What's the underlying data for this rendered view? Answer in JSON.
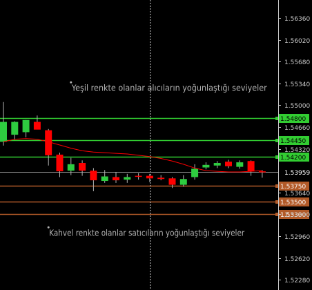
{
  "chart_data": {
    "type": "candlestick",
    "colors": {
      "background": "#000000",
      "axis": "#c8c8c8",
      "bull": "#2ecc40",
      "bear": "#ff0000",
      "wick": "#b4b4b4",
      "green_level": "#32cd32",
      "brown_level": "#b25a28",
      "ma": "#ff0000",
      "bid": "#8c8c8c",
      "annotation": "#b4b4b4",
      "vline": "#d0d0d0"
    },
    "ylim": [
      1.5212,
      1.5664
    ],
    "y_ticks": [
      "1.56360",
      "1.56020",
      "1.55680",
      "1.55340",
      "1.55000",
      "1.54660",
      "1.54320",
      "1.53640",
      "1.53300",
      "1.52960",
      "1.52620",
      "1.52280"
    ],
    "levels": [
      {
        "name": "green-level-1",
        "value": 1.548,
        "label": "1.54800",
        "kind": "green"
      },
      {
        "name": "green-level-2",
        "value": 1.5445,
        "label": "1.54450",
        "kind": "green"
      },
      {
        "name": "green-level-3",
        "value": 1.542,
        "label": "1.54200",
        "kind": "green"
      },
      {
        "name": "brown-level-1",
        "value": 1.5375,
        "label": "1.53750",
        "kind": "brown"
      },
      {
        "name": "brown-level-2",
        "value": 1.535,
        "label": "1.53500",
        "kind": "brown"
      },
      {
        "name": "brown-level-3",
        "value": 1.533,
        "label": "1.53300",
        "kind": "brown"
      }
    ],
    "current_price": {
      "value": 1.53959,
      "label": "1.53959"
    },
    "candles": [
      {
        "o": 1.5443,
        "h": 1.5505,
        "l": 1.5437,
        "c": 1.5474
      },
      {
        "o": 1.5454,
        "h": 1.5475,
        "l": 1.5446,
        "c": 1.5474
      },
      {
        "o": 1.5458,
        "h": 1.5477,
        "l": 1.545,
        "c": 1.5477
      },
      {
        "o": 1.5474,
        "h": 1.5484,
        "l": 1.5463,
        "c": 1.5462
      },
      {
        "o": 1.5461,
        "h": 1.5463,
        "l": 1.5406,
        "c": 1.5422
      },
      {
        "o": 1.5423,
        "h": 1.5426,
        "l": 1.5388,
        "c": 1.5397
      },
      {
        "o": 1.5398,
        "h": 1.5418,
        "l": 1.5391,
        "c": 1.5408
      },
      {
        "o": 1.541,
        "h": 1.5414,
        "l": 1.539,
        "c": 1.5398
      },
      {
        "o": 1.5398,
        "h": 1.5402,
        "l": 1.5366,
        "c": 1.5383
      },
      {
        "o": 1.5382,
        "h": 1.5399,
        "l": 1.5379,
        "c": 1.5389
      },
      {
        "o": 1.5388,
        "h": 1.5396,
        "l": 1.5379,
        "c": 1.5383
      },
      {
        "o": 1.5384,
        "h": 1.5393,
        "l": 1.5379,
        "c": 1.5388
      },
      {
        "o": 1.539,
        "h": 1.5394,
        "l": 1.5384,
        "c": 1.5389
      },
      {
        "o": 1.539,
        "h": 1.5393,
        "l": 1.538,
        "c": 1.5386
      },
      {
        "o": 1.5387,
        "h": 1.5391,
        "l": 1.5383,
        "c": 1.5385
      },
      {
        "o": 1.5386,
        "h": 1.5388,
        "l": 1.5371,
        "c": 1.5376
      },
      {
        "o": 1.5376,
        "h": 1.5391,
        "l": 1.5373,
        "c": 1.5385
      },
      {
        "o": 1.5388,
        "h": 1.5408,
        "l": 1.5384,
        "c": 1.5401
      },
      {
        "o": 1.5403,
        "h": 1.5411,
        "l": 1.54,
        "c": 1.5407
      },
      {
        "o": 1.5406,
        "h": 1.5413,
        "l": 1.5402,
        "c": 1.541
      },
      {
        "o": 1.5412,
        "h": 1.5415,
        "l": 1.5402,
        "c": 1.5405
      },
      {
        "o": 1.5404,
        "h": 1.5414,
        "l": 1.5401,
        "c": 1.5411
      },
      {
        "o": 1.5413,
        "h": 1.5414,
        "l": 1.539,
        "c": 1.5397
      },
      {
        "o": 1.5397,
        "h": 1.5399,
        "l": 1.5387,
        "c": 1.5396
      }
    ],
    "moving_average": [
      1.5443,
      1.5447,
      1.5448,
      1.5447,
      1.5443,
      1.5438,
      1.5433,
      1.5429,
      1.5427,
      1.5426,
      1.5425,
      1.5424,
      1.5422,
      1.542,
      1.5417,
      1.5413,
      1.5408,
      1.5402,
      1.5398,
      1.5397,
      1.5396,
      1.5396,
      1.5397,
      1.5398
    ],
    "annotations": [
      {
        "name": "annotation-buyers",
        "text": "Yeşil renkte olanlar alıcıların yoğunlaştığı seviyeler",
        "price": 1.5527,
        "candle_index": 6
      },
      {
        "name": "annotation-sellers",
        "text": "Kahvel renkte olanlar satıcıların yoğunlaştığı seviyeler",
        "price": 1.5301,
        "candle_index": 4
      }
    ],
    "vertical_line_candle_index": 13
  }
}
